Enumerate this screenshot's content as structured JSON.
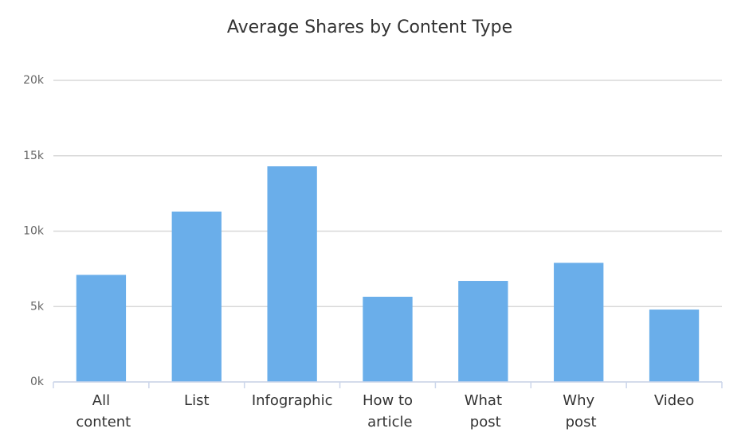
{
  "chart_data": {
    "type": "bar",
    "title": "Average Shares by Content Type",
    "categories": [
      "All content",
      "List",
      "Infographic",
      "How to article",
      "What post",
      "Why post",
      "Video"
    ],
    "values": [
      7100,
      11300,
      14300,
      5650,
      6700,
      7900,
      4800
    ],
    "color": "#6aaeea",
    "ylim": [
      0,
      20000
    ],
    "yticks": [
      {
        "value": 0,
        "label": "0k"
      },
      {
        "value": 5000,
        "label": "5k"
      },
      {
        "value": 10000,
        "label": "10k"
      },
      {
        "value": 15000,
        "label": "15k"
      },
      {
        "value": 20000,
        "label": "20k"
      }
    ],
    "grid": true
  }
}
